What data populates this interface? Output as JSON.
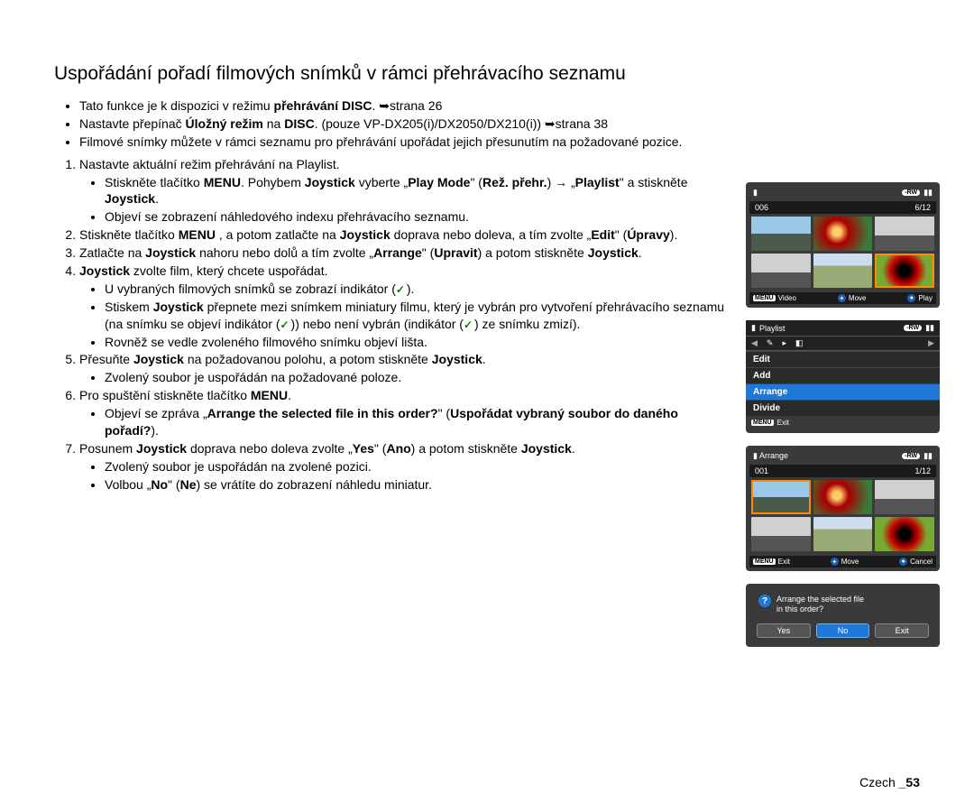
{
  "title": "Uspořádání pořadí filmových snímků v rámci přehrávacího seznamu",
  "top": [
    {
      "pre": "Tato funkce je k dispozici v režimu ",
      "b1": "přehrávání DISC",
      "post": ". ➥strana 26"
    },
    {
      "pre": "Nastavte přepínač ",
      "b1": "Úložný režim",
      "mid": " na ",
      "b2": "DISC",
      "post": ". (pouze VP-DX205(i)/DX2050/DX210(i)) ➥strana 38"
    },
    {
      "pre": "Filmové snímky můžete v rámci seznamu pro přehrávání upořádat jejich přesunutím na požadované pozice.",
      "b1": "",
      "post": ""
    }
  ],
  "steps": {
    "s1": {
      "text": "Nastavte aktuální režim přehrávání na Playlist."
    },
    "s1b": {
      "pre": "Stiskněte tlačítko ",
      "b1": "MENU",
      "mid": ". Pohybem ",
      "b2": "Joystick",
      "mid2": " vyberte „",
      "b3": "Play Mode",
      "mid3": "\" (",
      "b4": "Rež. přehr.",
      "post": ") → „",
      "b5": "Playlist",
      "post2": "\" a stiskněte ",
      "b6": "Joystick",
      "end": "."
    },
    "s1c": "Objeví se zobrazení náhledového indexu přehrávacího seznamu.",
    "s2": {
      "n": "2.",
      "pre": "Stiskněte tlačítko ",
      "b1": "MENU",
      "mid": " , a potom zatlačte na ",
      "b2": "Joystick",
      "mid2": " doprava nebo doleva, a tím zvolte „",
      "b3": "Edit",
      "mid3": "\" (",
      "b4": "Úpravy",
      "end": ")."
    },
    "s3": {
      "n": "3.",
      "pre": "Zatlačte na ",
      "b1": "Joystick",
      "mid": " nahoru nebo dolů a tím zvolte „",
      "b2": "Arrange",
      "mid2": "\" (",
      "b3": "Upravit",
      "mid3": ") a potom stiskněte ",
      "b4": "Joystick",
      "end": "."
    },
    "s4": {
      "n": "4.",
      "b1": "Joystick",
      "post": " zvolte film, který chcete uspořádat."
    },
    "s4a": "U vybraných filmových snímků se zobrazí indikátor (",
    "s4a2": ").",
    "s4b": {
      "pre": "Stiskem ",
      "b1": "Joystick",
      "mid": " přepnete mezi snímkem miniatury filmu, který je vybrán pro vytvoření přehrávacího seznamu (na snímku se objeví indikátor (",
      "post": ")) nebo není vybrán (indikátor (",
      "post2": ") ze snímku zmizí)."
    },
    "s4c": "Rovněž se vedle zvoleného filmového snímku objeví lišta.",
    "s5": {
      "n": "5.",
      "pre": "Přesuňte ",
      "b1": "Joystick",
      "mid": " na požadovanou polohu, a potom stiskněte ",
      "b2": "Joystick",
      "end": "."
    },
    "s5a": "Zvolený soubor je uspořádán na požadované poloze.",
    "s6": {
      "n": "6.",
      "pre": "Pro spuštění stiskněte tlačítko ",
      "b1": "MENU",
      "end": "."
    },
    "s6a": {
      "pre": "Objeví se zpráva „",
      "b1": "Arrange the selected file in this order?",
      "mid": "\" (",
      "b2": "Uspořádat vybraný soubor do daného pořadí?",
      "end": ")."
    },
    "s7": {
      "n": "7.",
      "pre": "Posunem ",
      "b1": "Joystick",
      "mid": " doprava nebo doleva zvolte „",
      "b2": "Yes",
      "mid2": "\" (",
      "b3": "Ano",
      "mid3": ") a potom stiskněte ",
      "b4": "Joystick",
      "end": "."
    },
    "s7a": "Zvolený soubor je uspořádán na zvolené pozici.",
    "s7b": {
      "pre": "Volbou „",
      "b1": "No",
      "mid": "\" (",
      "b2": "Ne",
      "post": ") se vrátíte do zobrazení náhledu miniatur."
    }
  },
  "footer": {
    "lang": "Czech ",
    "page": "_53"
  },
  "screens": {
    "s1": {
      "counter_l": "006",
      "counter_r": "6/12",
      "menu": "MENU",
      "video": "Video",
      "move": "Move",
      "play": "Play",
      "rw": "-RW"
    },
    "s2": {
      "title": "Playlist",
      "items": [
        "Edit",
        "Add",
        "Arrange",
        "Divide"
      ],
      "selected": "Arrange",
      "exit": "Exit",
      "menu": "MENU",
      "rw": "-RW"
    },
    "s3": {
      "title": "Arrange",
      "counter_l": "001",
      "counter_r": "1/12",
      "menu": "MENU",
      "exit": "Exit",
      "move": "Move",
      "cancel": "Cancel",
      "rw": "-RW"
    },
    "s4": {
      "msg1": "Arrange the selected file",
      "msg2": "in this order?",
      "yes": "Yes",
      "no": "No",
      "exit": "Exit"
    }
  },
  "colors": {
    "bg": "#ffffff",
    "text": "#000000",
    "screen_bg": "#3a3a3a",
    "bar": "#1a1a1a",
    "blue": "#1e78d8",
    "orange": "#ff8c00",
    "green_check": "#008000"
  }
}
